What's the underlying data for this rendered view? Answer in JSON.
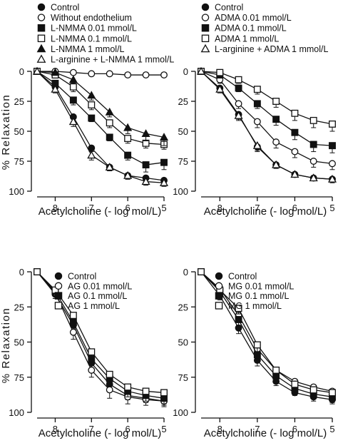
{
  "figure": {
    "y_axis_label": "% Relaxation"
  },
  "chart_data": [
    {
      "type": "scatter",
      "panel": "top-left",
      "xlabel": "Acetylcholine (- log mol/L)",
      "ylabel": "% Relaxation",
      "xlim": [
        8.5,
        5
      ],
      "ylim": [
        0,
        100
      ],
      "y_reversed": true,
      "x_ticks": [
        8,
        7,
        6,
        5
      ],
      "x_tick_labels": [
        "8",
        "7",
        "6",
        "5"
      ],
      "y_ticks": [
        0,
        25,
        50,
        75,
        100
      ],
      "y_tick_labels": [
        "0",
        "25",
        "50",
        "75",
        "100"
      ],
      "legend_position": "top-left",
      "series": [
        {
          "name": "Control",
          "marker": "circle-filled",
          "x": [
            8.5,
            8,
            7.5,
            7,
            6.5,
            6,
            5.5,
            5
          ],
          "y": [
            0,
            13,
            38,
            64,
            80,
            87,
            89,
            91
          ],
          "err": [
            0,
            3,
            4,
            3,
            3,
            3,
            3,
            3
          ]
        },
        {
          "name": "Without endothelium",
          "marker": "circle-open",
          "x": [
            8.5,
            8,
            7.5,
            7,
            6.5,
            6,
            5.5,
            5
          ],
          "y": [
            0,
            0,
            1,
            2,
            2,
            3,
            3,
            3
          ],
          "err": [
            0,
            0,
            0,
            0,
            0,
            0,
            0,
            0
          ]
        },
        {
          "name": "L-NMMA 0.01 mmol/L",
          "marker": "square-filled",
          "x": [
            8.5,
            8,
            7.5,
            7,
            6.5,
            6,
            5.5,
            5
          ],
          "y": [
            0,
            10,
            24,
            39,
            55,
            70,
            78,
            76
          ],
          "err": [
            0,
            3,
            4,
            3,
            3,
            4,
            6,
            6
          ]
        },
        {
          "name": "L-NMMA 0.1 mmol/L",
          "marker": "square-open",
          "x": [
            8.5,
            8,
            7.5,
            7,
            6.5,
            6,
            5.5,
            5
          ],
          "y": [
            0,
            3,
            13,
            28,
            43,
            56,
            60,
            61
          ],
          "err": [
            0,
            2,
            4,
            4,
            4,
            4,
            4,
            4
          ]
        },
        {
          "name": "L-NMMA 1 mmol/L",
          "marker": "triangle-filled",
          "x": [
            8.5,
            8,
            7.5,
            7,
            6.5,
            6,
            5.5,
            5
          ],
          "y": [
            0,
            1,
            7,
            20,
            34,
            47,
            52,
            55
          ],
          "err": [
            0,
            1,
            3,
            4,
            4,
            5,
            6,
            7
          ]
        },
        {
          "name": "L-arginine + L-NMMA 1 mmol/L",
          "marker": "triangle-open",
          "x": [
            8.5,
            8,
            7.5,
            7,
            6.5,
            6,
            5.5,
            5
          ],
          "y": [
            0,
            15,
            42,
            70,
            80,
            87,
            92,
            93
          ],
          "err": [
            0,
            3,
            4,
            4,
            3,
            3,
            3,
            3
          ]
        }
      ]
    },
    {
      "type": "scatter",
      "panel": "top-right",
      "xlabel": "Acetylcholine (- log mol/L)",
      "ylabel": "",
      "xlim": [
        8.5,
        5
      ],
      "ylim": [
        0,
        100
      ],
      "y_reversed": true,
      "x_ticks": [
        8,
        7,
        6,
        5
      ],
      "x_tick_labels": [
        "8",
        "7",
        "6",
        "5"
      ],
      "y_ticks": [
        0,
        25,
        50,
        75,
        100
      ],
      "y_tick_labels": [
        "0",
        "25",
        "50",
        "75",
        "100"
      ],
      "legend_position": "top-left",
      "series": [
        {
          "name": "Control",
          "marker": "circle-filled",
          "x": [
            8.5,
            8,
            7.5,
            7,
            6.5,
            6,
            5.5,
            5
          ],
          "y": [
            0,
            14,
            36,
            63,
            78,
            86,
            89,
            90
          ],
          "err": [
            0,
            3,
            4,
            4,
            3,
            2,
            2,
            2
          ]
        },
        {
          "name": "ADMA 0.01 mmol/L",
          "marker": "circle-open",
          "x": [
            8.5,
            8,
            7.5,
            7,
            6.5,
            6,
            5.5,
            5
          ],
          "y": [
            0,
            7,
            27,
            42,
            59,
            67,
            75,
            77
          ],
          "err": [
            0,
            3,
            4,
            5,
            5,
            5,
            5,
            5
          ]
        },
        {
          "name": "ADMA 0.1 mmol/L",
          "marker": "square-filled",
          "x": [
            8.5,
            8,
            7.5,
            7,
            6.5,
            6,
            5.5,
            5
          ],
          "y": [
            0,
            3,
            14,
            27,
            40,
            51,
            61,
            62
          ],
          "err": [
            0,
            2,
            3,
            4,
            5,
            6,
            6,
            6
          ]
        },
        {
          "name": "ADMA 1 mmol/L",
          "marker": "square-open",
          "x": [
            8.5,
            8,
            7.5,
            7,
            6.5,
            6,
            5.5,
            5
          ],
          "y": [
            0,
            1,
            7,
            15,
            25,
            35,
            41,
            44
          ],
          "err": [
            0,
            1,
            3,
            4,
            5,
            6,
            6,
            6
          ]
        },
        {
          "name": "L-arginine + ADMA 1 mmol/L",
          "marker": "triangle-open",
          "x": [
            8.5,
            8,
            7.5,
            7,
            6.5,
            6,
            5.5,
            5
          ],
          "y": [
            0,
            15,
            37,
            62,
            78,
            86,
            89,
            90
          ],
          "err": [
            0,
            3,
            4,
            4,
            3,
            2,
            2,
            3
          ]
        }
      ]
    },
    {
      "type": "scatter",
      "panel": "bottom-left",
      "xlabel": "Acetylcholine (- log mol/L)",
      "ylabel": "% Relaxation",
      "xlim": [
        8.5,
        5
      ],
      "ylim": [
        0,
        100
      ],
      "y_reversed": true,
      "x_ticks": [
        8,
        7,
        6,
        5
      ],
      "x_tick_labels": [
        "8",
        "7",
        "6",
        "5"
      ],
      "y_ticks": [
        0,
        25,
        50,
        75,
        100
      ],
      "y_tick_labels": [
        "0",
        "25",
        "50",
        "75",
        "100"
      ],
      "legend_position": "top-left",
      "series": [
        {
          "name": "Control",
          "marker": "circle-filled",
          "x": [
            8.5,
            8,
            7.5,
            7,
            6.5,
            6,
            5.5,
            5
          ],
          "y": [
            0,
            16,
            38,
            65,
            80,
            88,
            90,
            92
          ],
          "err": [
            0,
            3,
            4,
            4,
            4,
            3,
            3,
            3
          ]
        },
        {
          "name": "AG 0.01 mmol/L",
          "marker": "circle-open",
          "x": [
            8.5,
            8,
            7.5,
            7,
            6.5,
            6,
            5.5,
            5
          ],
          "y": [
            0,
            15,
            43,
            70,
            84,
            89,
            91,
            92
          ],
          "err": [
            0,
            4,
            5,
            5,
            6,
            5,
            4,
            4
          ]
        },
        {
          "name": "AG 0.1 mmol/L",
          "marker": "square-filled",
          "x": [
            8.5,
            8,
            7.5,
            7,
            6.5,
            6,
            5.5,
            5
          ],
          "y": [
            0,
            14,
            36,
            62,
            76,
            85,
            88,
            90
          ],
          "err": [
            0,
            3,
            4,
            4,
            5,
            4,
            4,
            4
          ]
        },
        {
          "name": "AG 1 mmol/L",
          "marker": "square-open",
          "x": [
            8.5,
            8,
            7.5,
            7,
            6.5,
            6,
            5.5,
            5
          ],
          "y": [
            0,
            13,
            31,
            57,
            73,
            82,
            85,
            86
          ],
          "err": [
            0,
            3,
            4,
            5,
            5,
            4,
            4,
            4
          ]
        }
      ]
    },
    {
      "type": "scatter",
      "panel": "bottom-right",
      "xlabel": "Acetylcholine (- log mol/L)",
      "ylabel": "",
      "xlim": [
        8.5,
        5
      ],
      "ylim": [
        0,
        100
      ],
      "y_reversed": true,
      "x_ticks": [
        8,
        7,
        6,
        5
      ],
      "x_tick_labels": [
        "8",
        "7",
        "6",
        "5"
      ],
      "y_ticks": [
        0,
        25,
        50,
        75,
        100
      ],
      "y_tick_labels": [
        "0",
        "25",
        "50",
        "75",
        "100"
      ],
      "legend_position": "top-left",
      "series": [
        {
          "name": "Control",
          "marker": "circle-filled",
          "x": [
            8.5,
            8,
            7.5,
            7,
            6.5,
            6,
            5.5,
            5
          ],
          "y": [
            0,
            17,
            40,
            63,
            78,
            86,
            89,
            91
          ],
          "err": [
            0,
            3,
            4,
            4,
            3,
            2,
            3,
            3
          ]
        },
        {
          "name": "MG 0.01 mmol/L",
          "marker": "circle-open",
          "x": [
            8.5,
            8,
            7.5,
            7,
            6.5,
            6,
            5.5,
            5
          ],
          "y": [
            0,
            12,
            31,
            55,
            70,
            78,
            82,
            85
          ],
          "err": [
            0,
            3,
            5,
            6,
            7,
            8,
            8,
            8
          ]
        },
        {
          "name": "MG 0.1 mmol/L",
          "marker": "square-filled",
          "x": [
            8.5,
            8,
            7.5,
            7,
            6.5,
            6,
            5.5,
            5
          ],
          "y": [
            0,
            14,
            34,
            59,
            74,
            83,
            87,
            89
          ],
          "err": [
            0,
            3,
            4,
            4,
            4,
            3,
            3,
            3
          ]
        },
        {
          "name": "MG 1 mmol/L",
          "marker": "square-open",
          "x": [
            8.5,
            8,
            7.5,
            7,
            6.5,
            6,
            5.5,
            5
          ],
          "y": [
            0,
            13,
            26,
            52,
            70,
            80,
            84,
            86
          ],
          "err": [
            0,
            3,
            4,
            5,
            5,
            4,
            4,
            4
          ]
        }
      ]
    }
  ]
}
